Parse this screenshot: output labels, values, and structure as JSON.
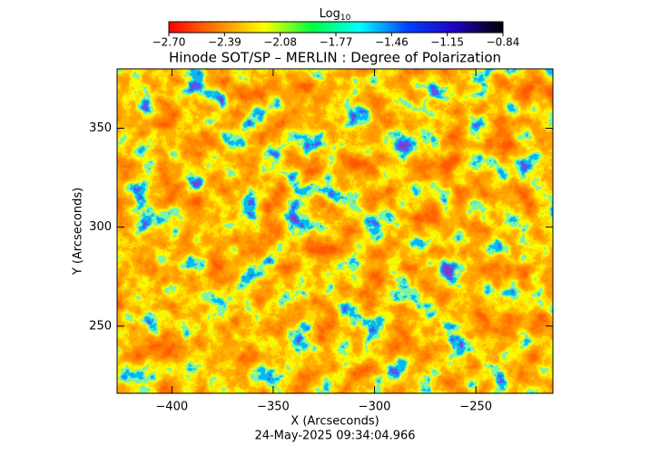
{
  "chart_data": {
    "type": "image",
    "title": "Hinode SOT/SP – MERLIN : Degree of Polarization",
    "x_label": "X (Arcseconds)",
    "y_label": "Y (Arcseconds)",
    "footer": "24-May-2025 09:34:04.966",
    "xlim": [
      -427,
      -212
    ],
    "ylim": [
      216,
      380
    ],
    "xticks": [
      {
        "value": -400,
        "label": "−400"
      },
      {
        "value": -350,
        "label": "−350"
      },
      {
        "value": -300,
        "label": "−300"
      },
      {
        "value": -250,
        "label": "−250"
      }
    ],
    "yticks": [
      250,
      300,
      350
    ],
    "colorbar": {
      "label": "Log",
      "label_subscript": "10",
      "lim": [
        -2.7,
        -0.84
      ],
      "ticks": [
        {
          "value": -2.7,
          "label": "−2.70"
        },
        {
          "value": -2.39,
          "label": "−2.39"
        },
        {
          "value": -2.08,
          "label": "−2.08"
        },
        {
          "value": -1.77,
          "label": "−1.77"
        },
        {
          "value": -1.46,
          "label": "−1.46"
        },
        {
          "value": -1.15,
          "label": "−1.15"
        },
        {
          "value": -0.84,
          "label": "−0.84"
        }
      ],
      "colormap": [
        "#ff0000",
        "#ff8000",
        "#ffff00",
        "#00ff40",
        "#00ffff",
        "#0040ff",
        "#2000c0",
        "#000000"
      ]
    }
  }
}
